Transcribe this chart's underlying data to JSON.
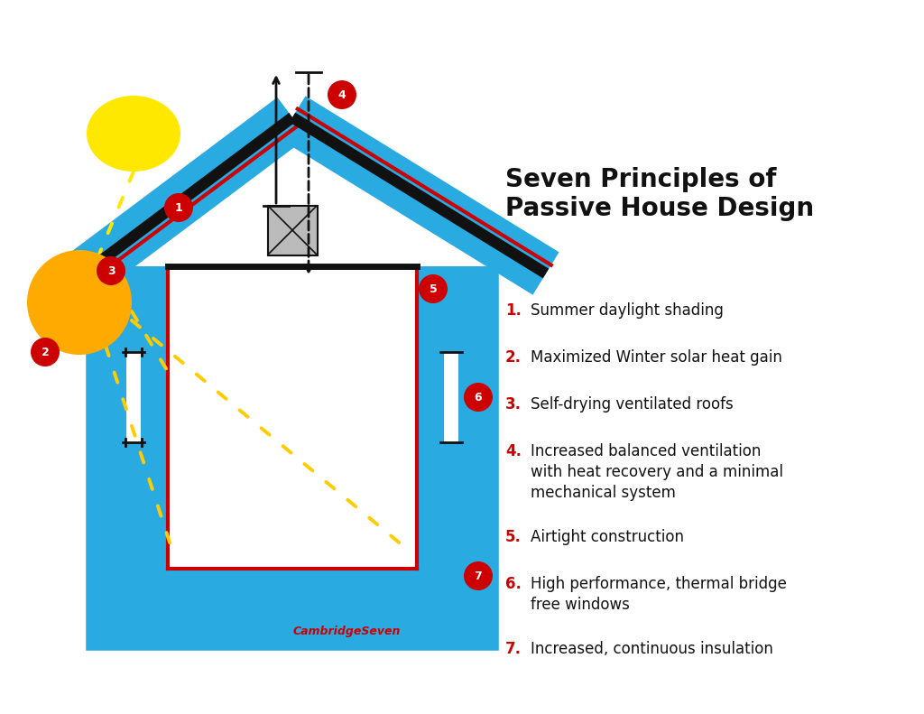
{
  "colors": {
    "black": "#111111",
    "blue": "#29ABE2",
    "red": "#CC0000",
    "yellow": "#FFE800",
    "orange": "#FFA500",
    "white": "#FFFFFF",
    "gray": "#BBBBBB",
    "bg": "#FFFFFF"
  },
  "title": "Seven Principles of\nPassive House Design",
  "items": [
    {
      "num": "1.",
      "text": "Summer daylight shading",
      "multi": false
    },
    {
      "num": "2.",
      "text": "Maximized Winter solar heat gain",
      "multi": false
    },
    {
      "num": "3.",
      "text": "Self-drying ventilated roofs",
      "multi": false
    },
    {
      "num": "4.",
      "text": "Increased balanced ventilation\nwith heat recovery and a minimal\nmechanical system",
      "multi": true
    },
    {
      "num": "5.",
      "text": "Airtight construction",
      "multi": false
    },
    {
      "num": "6.",
      "text": "High performance, thermal bridge\nfree windows",
      "multi": true
    },
    {
      "num": "7.",
      "text": "Increased, continuous insulation",
      "multi": false
    }
  ],
  "credit": "CambridgeSeven"
}
